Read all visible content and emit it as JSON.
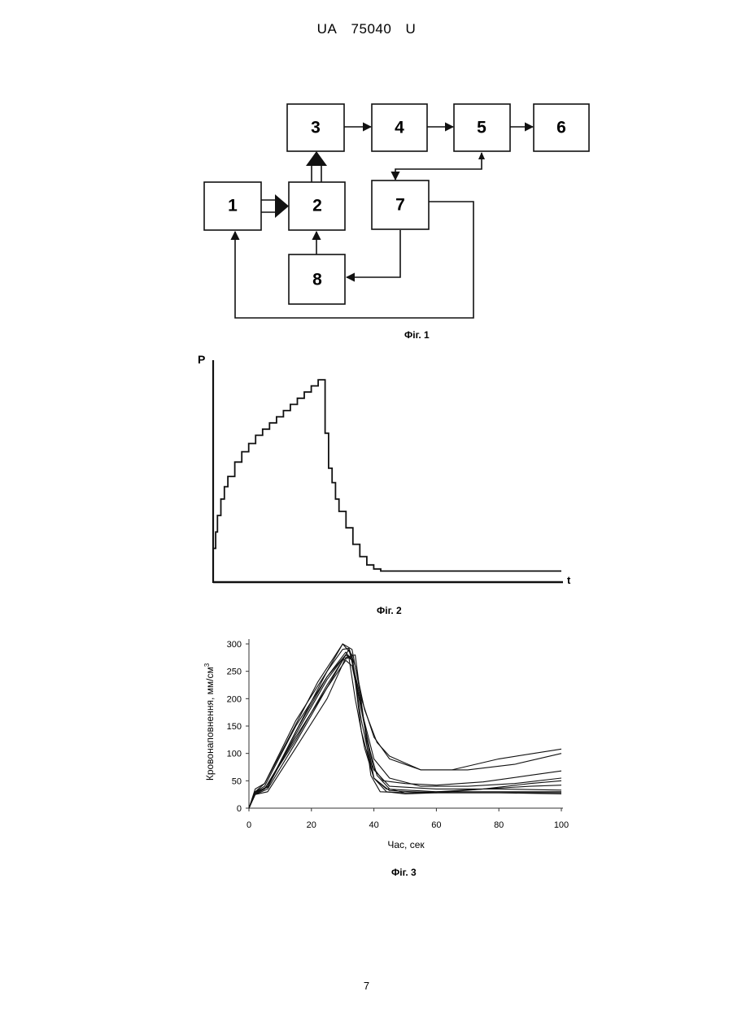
{
  "header": {
    "country": "UA",
    "number": "75040",
    "kind": "U"
  },
  "fig1": {
    "caption": "Фіг. 1",
    "blocks": [
      {
        "id": "b1",
        "label": "1"
      },
      {
        "id": "b2",
        "label": "2"
      },
      {
        "id": "b3",
        "label": "3"
      },
      {
        "id": "b4",
        "label": "4"
      },
      {
        "id": "b5",
        "label": "5"
      },
      {
        "id": "b6",
        "label": "6"
      },
      {
        "id": "b7",
        "label": "7"
      },
      {
        "id": "b8",
        "label": "8"
      }
    ]
  },
  "fig2": {
    "caption": "Фіг. 2",
    "ylabel": "P",
    "xlabel": "t"
  },
  "fig3": {
    "caption": "Фіг. 3"
  },
  "chart_data": [
    {
      "type": "line",
      "ylabel": "P",
      "xlabel": "t",
      "grid": false,
      "series": [
        {
          "x": [
            0,
            0.5,
            1,
            2,
            3,
            4,
            6,
            8,
            10,
            12,
            14,
            16,
            18,
            20,
            22,
            24,
            26,
            28,
            30,
            31,
            32,
            33,
            34,
            35,
            36,
            38,
            40,
            42,
            44,
            46,
            48,
            50,
            60,
            70,
            80,
            90,
            100
          ],
          "y": [
            0.16,
            0.24,
            0.32,
            0.4,
            0.46,
            0.51,
            0.58,
            0.63,
            0.67,
            0.71,
            0.74,
            0.77,
            0.8,
            0.83,
            0.86,
            0.89,
            0.92,
            0.95,
            0.98,
            0.98,
            0.72,
            0.55,
            0.48,
            0.4,
            0.34,
            0.26,
            0.18,
            0.12,
            0.08,
            0.06,
            0.05,
            0.05,
            0.05,
            0.05,
            0.05,
            0.05,
            0.05
          ]
        }
      ]
    },
    {
      "type": "line",
      "xlabel": "Час, сек",
      "ylabel": "Кровонаповнення, мм/см",
      "ylabel_sup": "3",
      "xlim": [
        0,
        100
      ],
      "ylim": [
        0,
        300
      ],
      "xticks": [
        0,
        20,
        40,
        60,
        80,
        100
      ],
      "yticks": [
        0,
        50,
        100,
        150,
        200,
        250,
        300
      ],
      "grid": false,
      "series": [
        {
          "x": [
            0,
            2,
            6,
            15,
            25,
            31,
            34,
            37,
            39,
            42,
            50,
            60,
            80,
            100
          ],
          "y": [
            0,
            25,
            30,
            110,
            200,
            275,
            280,
            150,
            60,
            30,
            28,
            28,
            28,
            28
          ]
        },
        {
          "x": [
            0,
            2,
            5,
            15,
            25,
            32,
            35,
            38,
            40,
            44,
            60,
            80,
            100
          ],
          "y": [
            0,
            28,
            35,
            130,
            220,
            290,
            220,
            120,
            55,
            35,
            30,
            30,
            30
          ]
        },
        {
          "x": [
            0,
            2,
            5,
            15,
            25,
            31,
            33,
            36,
            40,
            45,
            60,
            80,
            100
          ],
          "y": [
            0,
            30,
            40,
            150,
            240,
            280,
            270,
            180,
            70,
            40,
            35,
            35,
            33
          ]
        },
        {
          "x": [
            0,
            2,
            6,
            15,
            25,
            30,
            33,
            36,
            40,
            45,
            60,
            80,
            100
          ],
          "y": [
            0,
            30,
            38,
            140,
            250,
            300,
            280,
            140,
            55,
            32,
            28,
            28,
            26
          ]
        },
        {
          "x": [
            0,
            2,
            5,
            12,
            22,
            30,
            33,
            36,
            40,
            45,
            55,
            70,
            85,
            100
          ],
          "y": [
            0,
            35,
            45,
            120,
            230,
            300,
            290,
            200,
            130,
            90,
            70,
            70,
            80,
            100
          ]
        },
        {
          "x": [
            0,
            2,
            5,
            15,
            25,
            30,
            32,
            34,
            37,
            41,
            45,
            55,
            65,
            80,
            100
          ],
          "y": [
            0,
            30,
            45,
            160,
            250,
            290,
            292,
            260,
            180,
            120,
            95,
            70,
            70,
            90,
            108
          ]
        },
        {
          "x": [
            0,
            2,
            6,
            15,
            25,
            31,
            33,
            36,
            40,
            45,
            55,
            70,
            85,
            100
          ],
          "y": [
            0,
            25,
            35,
            120,
            220,
            270,
            260,
            180,
            90,
            55,
            40,
            40,
            45,
            55
          ]
        },
        {
          "x": [
            0,
            2,
            6,
            15,
            25,
            31,
            33,
            36,
            39,
            43,
            50,
            60,
            75,
            90,
            100
          ],
          "y": [
            0,
            28,
            40,
            140,
            240,
            285,
            270,
            160,
            80,
            50,
            45,
            42,
            48,
            60,
            68
          ]
        },
        {
          "x": [
            0,
            2,
            6,
            15,
            25,
            31,
            33,
            35,
            38,
            41,
            45,
            50,
            60,
            75,
            90,
            100
          ],
          "y": [
            0,
            30,
            38,
            135,
            235,
            280,
            275,
            210,
            120,
            60,
            35,
            28,
            30,
            35,
            40,
            42
          ]
        },
        {
          "x": [
            0,
            2,
            5,
            15,
            25,
            30,
            32,
            34,
            37,
            40,
            44,
            50,
            60,
            75,
            90,
            100
          ],
          "y": [
            0,
            26,
            35,
            125,
            225,
            270,
            275,
            200,
            110,
            55,
            30,
            26,
            28,
            35,
            45,
            50
          ]
        }
      ]
    }
  ]
}
